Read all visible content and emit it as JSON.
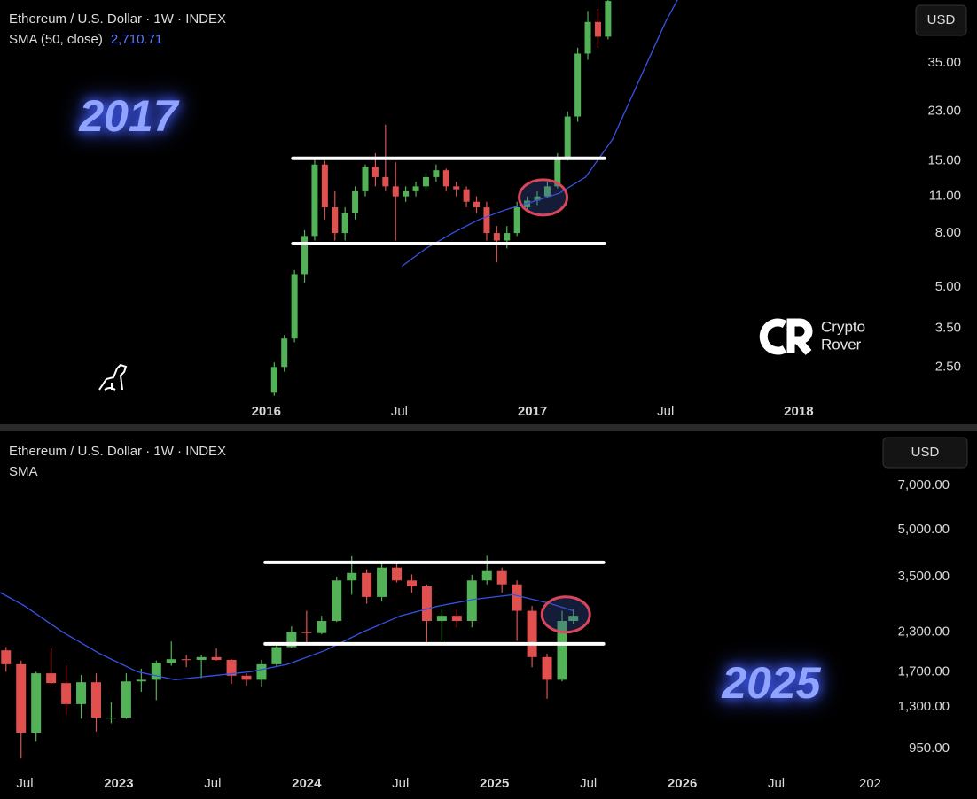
{
  "chart_data": [
    {
      "type": "candlestick",
      "title": "Ethereum / U.S. Dollar · 1W · INDEX",
      "indicator": "SMA (50, close)",
      "indicator_value": {
        "value": 2710.71,
        "label": "2,710.71"
      },
      "currency": "USD",
      "annotation": "2017",
      "watermark": [
        "Crypto",
        "Rover"
      ],
      "log_scale": true,
      "up_color": "#53b257",
      "down_color": "#e0504f",
      "sma_color": "#3553e6",
      "xlim": [
        2015.0,
        2018.43
      ],
      "xticks": [
        2016,
        {
          "value": 2016.5,
          "label": "Jul"
        },
        2017,
        {
          "value": 2017.5,
          "label": "Jul"
        },
        2018
      ],
      "ylim": [
        1.9,
        60.5
      ],
      "yticks": [
        {
          "value": 35,
          "label": "35.00"
        },
        {
          "value": 23,
          "label": "23.00"
        },
        {
          "value": 15,
          "label": "15.00"
        },
        {
          "value": 11,
          "label": "11.00"
        },
        {
          "value": 8,
          "label": "8.00"
        },
        {
          "value": 5,
          "label": "5.00"
        },
        {
          "value": 3.5,
          "label": "3.50"
        },
        {
          "value": 2.5,
          "label": "2.50"
        }
      ],
      "x": [
        2016.03,
        2016.068,
        2016.106,
        2016.144,
        2016.182,
        2016.22,
        2016.258,
        2016.296,
        2016.334,
        2016.372,
        2016.41,
        2016.448,
        2016.486,
        2016.524,
        2016.562,
        2016.6,
        2016.638,
        2016.676,
        2016.714,
        2016.752,
        2016.79,
        2016.828,
        2016.866,
        2016.904,
        2016.942,
        2016.98,
        2017.018,
        2017.056,
        2017.094,
        2017.132,
        2017.17,
        2017.208,
        2017.246,
        2017.284
      ],
      "open": [
        2.0,
        2.5,
        3.2,
        5.6,
        7.8,
        14.5,
        10,
        8,
        9.5,
        11.5,
        14.2,
        13,
        12,
        11,
        11.5,
        12,
        13,
        13.8,
        12,
        11.7,
        10.5,
        10,
        8,
        7.5,
        8,
        10,
        10.6,
        11,
        12,
        15.5,
        22,
        38,
        50,
        44
      ],
      "high": [
        2.6,
        3.3,
        5.8,
        8.2,
        15.5,
        15,
        11.5,
        10,
        12,
        14.5,
        16,
        20.5,
        14.8,
        12,
        12.5,
        13.5,
        14.5,
        14,
        12.5,
        12,
        11,
        10.5,
        8.5,
        8.5,
        10.5,
        11,
        11.5,
        12.5,
        16,
        23,
        40,
        55,
        56,
        62
      ],
      "low": [
        1.95,
        2.4,
        3.1,
        5.2,
        7.5,
        9,
        7.5,
        7.5,
        9,
        11,
        12,
        11.5,
        7.5,
        10.5,
        11,
        11.5,
        12.5,
        11.5,
        11,
        10,
        9.5,
        7.5,
        6.2,
        7,
        7.8,
        9.8,
        10.2,
        10.8,
        11.8,
        15,
        21,
        36,
        40,
        43
      ],
      "close": [
        2.5,
        3.2,
        5.6,
        7.8,
        14.5,
        10,
        8,
        9.5,
        11.5,
        14.2,
        13,
        12,
        11,
        11.5,
        12,
        13,
        13.8,
        12,
        11.7,
        10.5,
        10,
        8,
        7.5,
        8,
        10,
        10.6,
        11,
        12,
        15.5,
        22,
        38,
        50,
        44,
        60
      ],
      "sma": {
        "x": [
          2016.51,
          2016.6,
          2016.7,
          2016.8,
          2016.9,
          2017.0,
          2017.1,
          2017.2,
          2017.3,
          2017.4,
          2017.5,
          2017.55
        ],
        "values": [
          6.0,
          7.0,
          8.0,
          9.0,
          9.8,
          10.5,
          11.3,
          13,
          18,
          30,
          50,
          62
        ]
      },
      "levels": [
        {
          "y": 15.3,
          "x": [
            2016.1,
            2017.27
          ]
        },
        {
          "y": 7.3,
          "x": [
            2016.1,
            2017.27
          ]
        }
      ],
      "highlight": {
        "x": 2017.04,
        "y": 10.9
      }
    },
    {
      "type": "candlestick",
      "title": "Ethereum / U.S. Dollar · 1W · INDEX",
      "indicator": "SMA",
      "currency": "USD",
      "annotation": "2025",
      "log_scale": true,
      "up_color": "#53b257",
      "down_color": "#e0504f",
      "sma_color": "#3553e6",
      "xlim": [
        2022.368,
        2027.04
      ],
      "xticks": [
        {
          "value": 2022.5,
          "label": "Jul"
        },
        2023,
        {
          "value": 2023.5,
          "label": "Jul"
        },
        2024,
        {
          "value": 2024.5,
          "label": "Jul"
        },
        2025,
        {
          "value": 2025.5,
          "label": "Jul"
        },
        2026,
        {
          "value": 2026.5,
          "label": "Jul"
        },
        {
          "value": 2027,
          "label": "202"
        }
      ],
      "ylim": [
        776,
        10330
      ],
      "yticks": [
        {
          "value": 7000,
          "label": "7,000.00"
        },
        {
          "value": 5000,
          "label": "5,000.00"
        },
        {
          "value": 3500,
          "label": "3,500.00"
        },
        {
          "value": 2300,
          "label": "2,300.00"
        },
        {
          "value": 1700,
          "label": "1,700.00"
        },
        {
          "value": 1300,
          "label": "1,300.00"
        },
        {
          "value": 950,
          "label": "950.00"
        }
      ],
      "x": [
        2022.4,
        2022.48,
        2022.56,
        2022.64,
        2022.72,
        2022.8,
        2022.88,
        2022.96,
        2023.04,
        2023.12,
        2023.2,
        2023.28,
        2023.36,
        2023.44,
        2023.52,
        2023.6,
        2023.68,
        2023.76,
        2023.84,
        2023.92,
        2024.0,
        2024.08,
        2024.16,
        2024.24,
        2024.32,
        2024.4,
        2024.48,
        2024.56,
        2024.64,
        2024.72,
        2024.8,
        2024.88,
        2024.96,
        2025.04,
        2025.12,
        2025.2,
        2025.28,
        2025.36,
        2025.42
      ],
      "open": [
        2000,
        1800,
        1070,
        1680,
        1560,
        1330,
        1570,
        1200,
        1200,
        1580,
        1600,
        1820,
        1870,
        1860,
        1900,
        1860,
        1650,
        1600,
        1800,
        2050,
        2300,
        2280,
        2500,
        3400,
        3600,
        3000,
        3750,
        3400,
        3250,
        2500,
        2600,
        2500,
        3400,
        3650,
        3300,
        2700,
        1900,
        1600,
        2500
      ],
      "high": [
        2050,
        1850,
        1700,
        2030,
        1790,
        1660,
        1680,
        1350,
        1680,
        1740,
        1850,
        2140,
        1930,
        1930,
        2030,
        1870,
        1680,
        1860,
        2130,
        2400,
        2700,
        2600,
        3500,
        4090,
        3700,
        3900,
        3900,
        3560,
        3300,
        2750,
        2720,
        3550,
        4100,
        3750,
        3400,
        2800,
        1950,
        2700,
        2740
      ],
      "low": [
        1700,
        880,
        1000,
        1550,
        1220,
        1190,
        1080,
        1150,
        1190,
        1460,
        1370,
        1780,
        1760,
        1620,
        1850,
        1550,
        1530,
        1520,
        1770,
        2030,
        2100,
        2260,
        2480,
        3050,
        2850,
        2900,
        3350,
        3100,
        2120,
        2150,
        2380,
        2380,
        3300,
        3100,
        2150,
        1760,
        1385,
        1580,
        2450
      ],
      "close": [
        1800,
        1070,
        1680,
        1560,
        1330,
        1570,
        1200,
        1200,
        1580,
        1600,
        1820,
        1870,
        1860,
        1900,
        1860,
        1650,
        1600,
        1800,
        2050,
        2300,
        2280,
        2500,
        3400,
        3600,
        3000,
        3750,
        3400,
        3250,
        2500,
        2600,
        2500,
        3400,
        3650,
        3300,
        2700,
        1900,
        1600,
        2500,
        2600
      ],
      "sma": {
        "x": [
          2022.37,
          2022.5,
          2022.7,
          2022.9,
          2023.1,
          2023.3,
          2023.5,
          2023.7,
          2023.9,
          2024.1,
          2024.3,
          2024.5,
          2024.7,
          2024.9,
          2025.1,
          2025.3,
          2025.42
        ],
        "values": [
          3100,
          2800,
          2300,
          1950,
          1700,
          1600,
          1650,
          1700,
          1800,
          2000,
          2300,
          2600,
          2800,
          2950,
          3050,
          2850,
          2700
        ]
      },
      "levels": [
        {
          "y": 3900,
          "x": [
            2023.78,
            2025.58
          ]
        },
        {
          "y": 2100,
          "x": [
            2023.78,
            2025.58
          ]
        }
      ],
      "highlight": {
        "x": 2025.38,
        "y": 2625
      }
    }
  ]
}
